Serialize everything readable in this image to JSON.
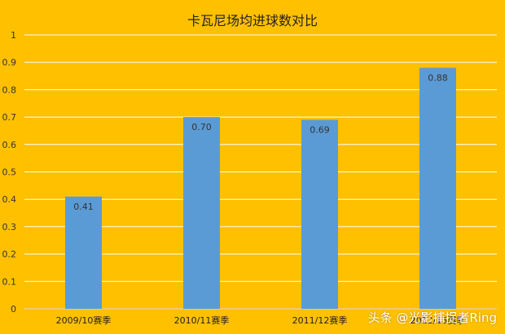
{
  "chart_data": {
    "type": "bar",
    "title": "卡瓦尼场均进球数对比",
    "categories": [
      "2009/10赛季",
      "2010/11赛季",
      "2011/12赛季",
      "2012/13赛季"
    ],
    "values": [
      0.41,
      0.7,
      0.69,
      0.88
    ],
    "data_labels": [
      "0.41",
      "0.70",
      "0.69",
      "0.88"
    ],
    "ylim": [
      0,
      1
    ],
    "yticks": [
      "0",
      "0.1",
      "0.2",
      "0.3",
      "0.4",
      "0.5",
      "0.6",
      "0.7",
      "0.8",
      "0.9",
      "1"
    ],
    "grid": true,
    "legend": "none",
    "colors": {
      "background": "#FFC000",
      "bar": "#5B9BD5",
      "gridline": "#FFFFFF",
      "axis": "#D9D9D9"
    }
  },
  "watermark": "头条 @光影捕捉者Ring"
}
